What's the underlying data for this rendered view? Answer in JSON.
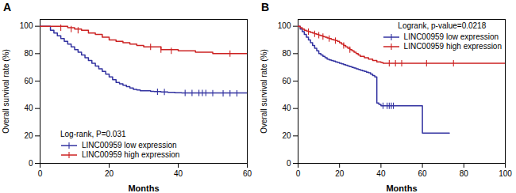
{
  "chart_data": [
    {
      "type": "step",
      "title": "A",
      "annotation": "Log-rank, P=0.031",
      "xlabel": "Months",
      "ylabel": "Overall survival rate (%)",
      "xlim": [
        0,
        60
      ],
      "ylim": [
        0,
        105
      ],
      "xticks": [
        0,
        20,
        40,
        60
      ],
      "yticks": [
        0,
        20,
        40,
        60,
        80,
        100
      ],
      "legend": "lower left",
      "series": [
        {
          "name": "LINC00959 low expression",
          "color": "#3232a0",
          "x": [
            0,
            2,
            3,
            4,
            5,
            6,
            7,
            8,
            9,
            10,
            11,
            12,
            13,
            14,
            15,
            16,
            17,
            18,
            19,
            20,
            21,
            22,
            23,
            24,
            25,
            26,
            27,
            28,
            29,
            30,
            32,
            33,
            35,
            37,
            39,
            41,
            60
          ],
          "values": [
            100,
            100,
            97,
            95,
            93,
            91,
            89,
            87,
            85,
            83,
            81,
            79,
            77,
            75,
            73,
            71,
            69,
            67,
            65,
            63,
            61,
            59,
            58,
            57,
            56,
            55,
            54,
            53.5,
            53,
            53,
            52.5,
            52.3,
            52,
            51.8,
            51.5,
            51.3,
            51.3
          ],
          "censor_x": [
            34,
            36,
            42,
            44,
            46,
            47,
            48,
            50,
            53,
            55,
            57
          ],
          "censor_y": [
            52.2,
            52.0,
            51.4,
            51.3,
            51.3,
            51.3,
            51.3,
            51.2,
            51.1,
            51.1,
            51.1
          ]
        },
        {
          "name": "LINC00959 high expression",
          "color": "#cc2222",
          "x": [
            0,
            5,
            8,
            10,
            12,
            14,
            16,
            18,
            20,
            22,
            24,
            26,
            28,
            30,
            35,
            40,
            45,
            50,
            55,
            60
          ],
          "values": [
            100,
            100,
            99,
            98,
            97,
            95,
            94,
            92,
            90,
            89,
            88,
            87,
            86,
            85,
            83,
            82,
            81,
            80,
            80,
            80
          ],
          "censor_x": [
            6,
            9,
            11,
            32,
            35,
            38,
            55
          ],
          "censor_y": [
            99,
            98,
            97,
            85,
            83,
            82,
            80
          ]
        }
      ]
    },
    {
      "type": "step",
      "title": "B",
      "annotation": "Logrank, p-value=0.0218",
      "xlabel": "Months",
      "ylabel": "Overall survival rate (%)",
      "xlim": [
        0,
        100
      ],
      "ylim": [
        0,
        105
      ],
      "xticks": [
        0,
        20,
        40,
        60,
        80,
        100
      ],
      "yticks": [
        0,
        20,
        40,
        60,
        80,
        100
      ],
      "legend": "upper right",
      "series": [
        {
          "name": "LINC00959 low expression",
          "color": "#3232a0",
          "x": [
            0,
            1,
            2,
            3,
            4,
            5,
            6,
            7,
            8,
            9,
            10,
            11,
            12,
            13,
            14,
            15,
            16,
            17,
            18,
            19,
            20,
            21,
            22,
            23,
            24,
            25,
            26,
            27,
            28,
            29,
            30,
            31,
            32,
            33,
            34,
            35,
            36,
            37,
            38,
            39,
            40,
            41,
            43,
            45,
            50,
            52,
            60,
            70,
            73
          ],
          "values": [
            100,
            98,
            96,
            94,
            92,
            90,
            88,
            86,
            84,
            82,
            80,
            79,
            78,
            77,
            76,
            75.5,
            75,
            74.5,
            74,
            73.5,
            73,
            72.5,
            72,
            71.5,
            71,
            70.5,
            70,
            69.5,
            69,
            68.5,
            68,
            67.5,
            67,
            66.5,
            66,
            65,
            64,
            63,
            44,
            43,
            42,
            42,
            42,
            42,
            42,
            42,
            22,
            22,
            22
          ],
          "censor_x": [
            41,
            43,
            44,
            45,
            46
          ],
          "censor_y": [
            42,
            42,
            42,
            42,
            42
          ]
        },
        {
          "name": "LINC00959 high expression",
          "color": "#cc2222",
          "x": [
            0,
            1,
            2,
            3,
            4,
            5,
            6,
            7,
            8,
            9,
            10,
            11,
            12,
            13,
            14,
            15,
            16,
            17,
            18,
            19,
            20,
            21,
            22,
            23,
            24,
            25,
            26,
            27,
            28,
            29,
            30,
            32,
            34,
            36,
            38,
            40,
            41,
            42,
            45,
            50,
            55,
            60,
            65,
            70,
            75,
            80,
            100
          ],
          "values": [
            100,
            99,
            98,
            97,
            96.5,
            96,
            95.5,
            95,
            94.5,
            94,
            93.5,
            93,
            92.5,
            92,
            91.5,
            91,
            90.5,
            90,
            89.5,
            89,
            88,
            87,
            86,
            85,
            84,
            83,
            82,
            81,
            80,
            79,
            78,
            77,
            76,
            75,
            74,
            73.5,
            73,
            73,
            73,
            73,
            73,
            73,
            73,
            73,
            73,
            73,
            73
          ],
          "censor_x": [
            5,
            8,
            10,
            12,
            15,
            18,
            22,
            25,
            44,
            47,
            50,
            62,
            75
          ],
          "censor_y": [
            96,
            94.5,
            93.5,
            92.5,
            91,
            89.5,
            86,
            83,
            73,
            73,
            73,
            73,
            73
          ]
        }
      ]
    }
  ]
}
